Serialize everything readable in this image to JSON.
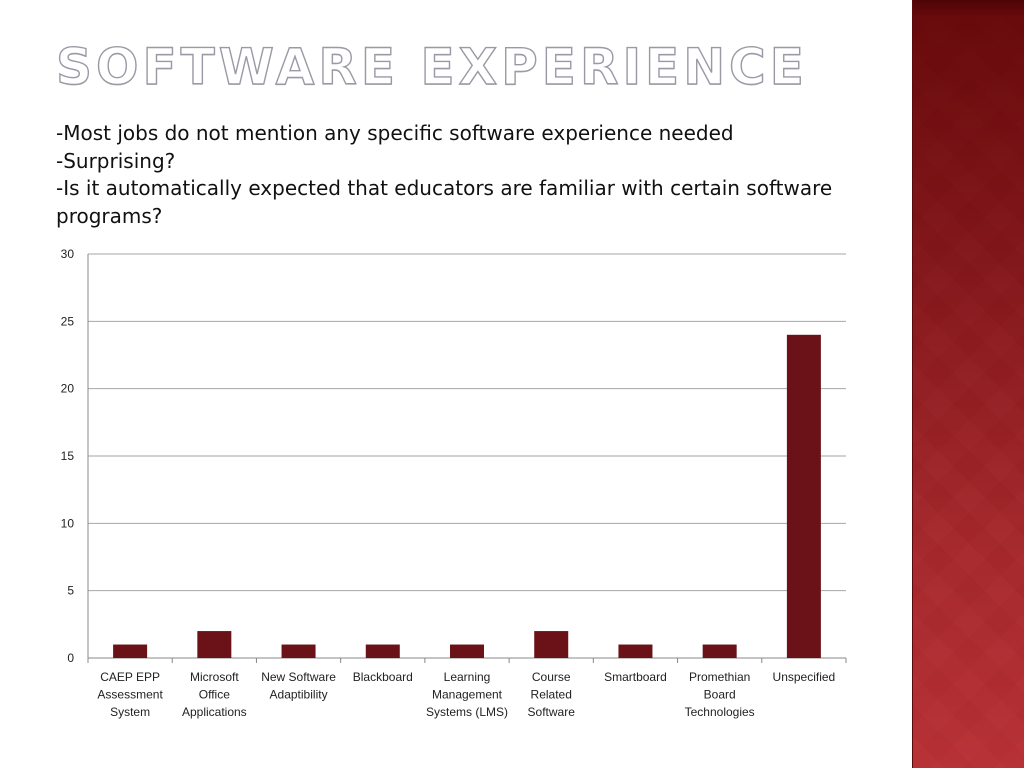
{
  "slide": {
    "title": "SOFTWARE EXPERIENCE",
    "bullets": [
      "-Most jobs do not mention any specific software experience needed",
      "-Surprising?",
      "-Is it  automatically expected that educators are familiar with certain software programs?"
    ]
  },
  "theme": {
    "accent": "#6b1218",
    "panel": "#8e1a1e",
    "grid": "#a6a6a6"
  },
  "chart_data": {
    "type": "bar",
    "categories": [
      "CAEP EPP Assessment System",
      "Microsoft Office Applications",
      "New Software Adaptibility",
      "Blackboard",
      "Learning Management Systems (LMS)",
      "Course Related Software",
      "Smartboard",
      "Promethian Board Technologies",
      "Unspecified"
    ],
    "category_lines": [
      [
        "CAEP EPP",
        "Assessment",
        "System"
      ],
      [
        "Microsoft",
        "Office",
        "Applications"
      ],
      [
        "New Software",
        "Adaptibility"
      ],
      [
        "Blackboard"
      ],
      [
        "Learning",
        "Management",
        "Systems (LMS)"
      ],
      [
        "Course",
        "Related",
        "Software"
      ],
      [
        "Smartboard"
      ],
      [
        "Promethian",
        "Board",
        "Technologies"
      ],
      [
        "Unspecified"
      ]
    ],
    "values": [
      1,
      2,
      1,
      1,
      1,
      2,
      1,
      1,
      24
    ],
    "ylim": [
      0,
      30
    ],
    "yticks": [
      "0",
      "5",
      "10",
      "15",
      "20",
      "25",
      "30"
    ],
    "grid": true,
    "legend": "none",
    "bar_color": "#6b1218"
  }
}
